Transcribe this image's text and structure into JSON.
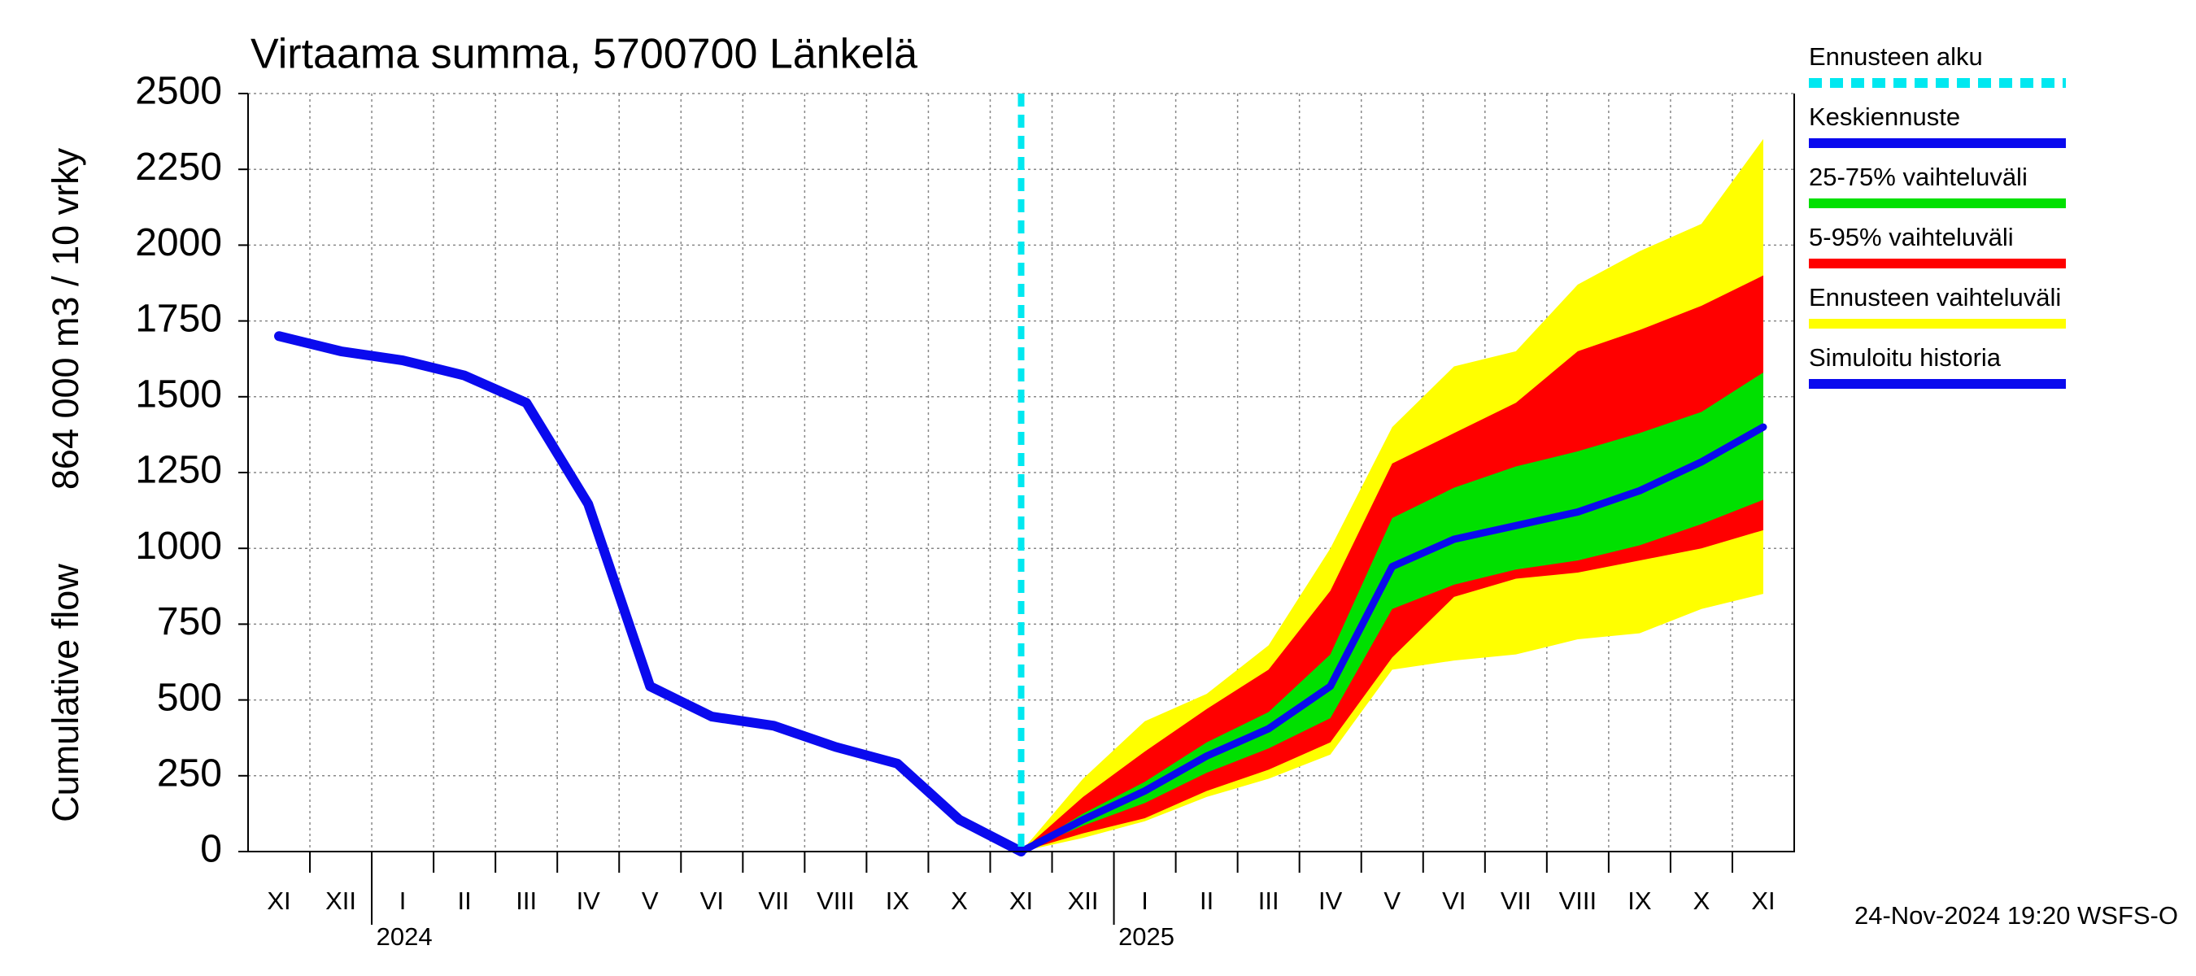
{
  "chart_data": {
    "type": "line",
    "title": "Virtaama summa, 5700700 Länkelä",
    "y_label": [
      "Cumulative flow",
      "864 000 m3 / 10 vrky"
    ],
    "categories": [
      "XI",
      "XII",
      "I",
      "II",
      "III",
      "IV",
      "V",
      "VI",
      "VII",
      "VIII",
      "IX",
      "X",
      "XI",
      "XII",
      "I",
      "II",
      "III",
      "IV",
      "V",
      "VI",
      "VII",
      "VIII",
      "IX",
      "X",
      "XI"
    ],
    "x_year_labels": [
      "2024",
      "2025"
    ],
    "ylim": [
      0,
      2500
    ],
    "yticks": [
      0,
      250,
      500,
      750,
      1000,
      1250,
      1500,
      1750,
      2000,
      2250,
      2500
    ],
    "grid": true,
    "forecast_start": {
      "name": "Ennusteen alku",
      "color": "#00e8f0"
    },
    "series": [
      {
        "name": "Simuloitu historia",
        "color": "#0a0aee",
        "values": [
          1700,
          1650,
          1620,
          1570,
          1480,
          1146,
          545,
          445,
          415,
          345,
          290,
          105,
          0,
          null,
          null,
          null,
          null,
          null,
          null,
          null,
          null,
          null,
          null,
          null,
          null
        ]
      },
      {
        "name": "Keskiennuste",
        "color": "#0a0aee",
        "values": [
          null,
          null,
          null,
          null,
          null,
          null,
          null,
          null,
          null,
          null,
          null,
          null,
          0,
          105,
          200,
          315,
          405,
          545,
          940,
          1030,
          1075,
          1120,
          1190,
          1285,
          1400
        ]
      }
    ],
    "bands": [
      {
        "name": "Ennusteen vaihteluväli",
        "color": "#ffff00",
        "low": [
          null,
          null,
          null,
          null,
          null,
          null,
          null,
          null,
          null,
          null,
          null,
          null,
          0,
          45,
          100,
          180,
          240,
          320,
          600,
          630,
          650,
          700,
          720,
          800,
          850
        ],
        "high": [
          null,
          null,
          null,
          null,
          null,
          null,
          null,
          null,
          null,
          null,
          null,
          null,
          0,
          240,
          430,
          520,
          680,
          1000,
          1400,
          1600,
          1650,
          1870,
          1980,
          2070,
          2350
        ]
      },
      {
        "name": "5-95% vaihteluväli",
        "color": "#ff0000",
        "low": [
          null,
          null,
          null,
          null,
          null,
          null,
          null,
          null,
          null,
          null,
          null,
          null,
          0,
          60,
          110,
          200,
          270,
          360,
          640,
          840,
          900,
          920,
          960,
          1000,
          1060
        ],
        "high": [
          null,
          null,
          null,
          null,
          null,
          null,
          null,
          null,
          null,
          null,
          null,
          null,
          0,
          180,
          330,
          470,
          600,
          860,
          1280,
          1380,
          1480,
          1650,
          1720,
          1800,
          1900
        ]
      },
      {
        "name": "25-75% vaihteluväli",
        "color": "#00e000",
        "low": [
          null,
          null,
          null,
          null,
          null,
          null,
          null,
          null,
          null,
          null,
          null,
          null,
          0,
          85,
          160,
          260,
          340,
          440,
          800,
          880,
          930,
          960,
          1010,
          1080,
          1160
        ],
        "high": [
          null,
          null,
          null,
          null,
          null,
          null,
          null,
          null,
          null,
          null,
          null,
          null,
          0,
          125,
          230,
          360,
          460,
          650,
          1100,
          1200,
          1270,
          1320,
          1380,
          1450,
          1580
        ]
      }
    ],
    "footer": "24-Nov-2024 19:20 WSFS-O"
  }
}
